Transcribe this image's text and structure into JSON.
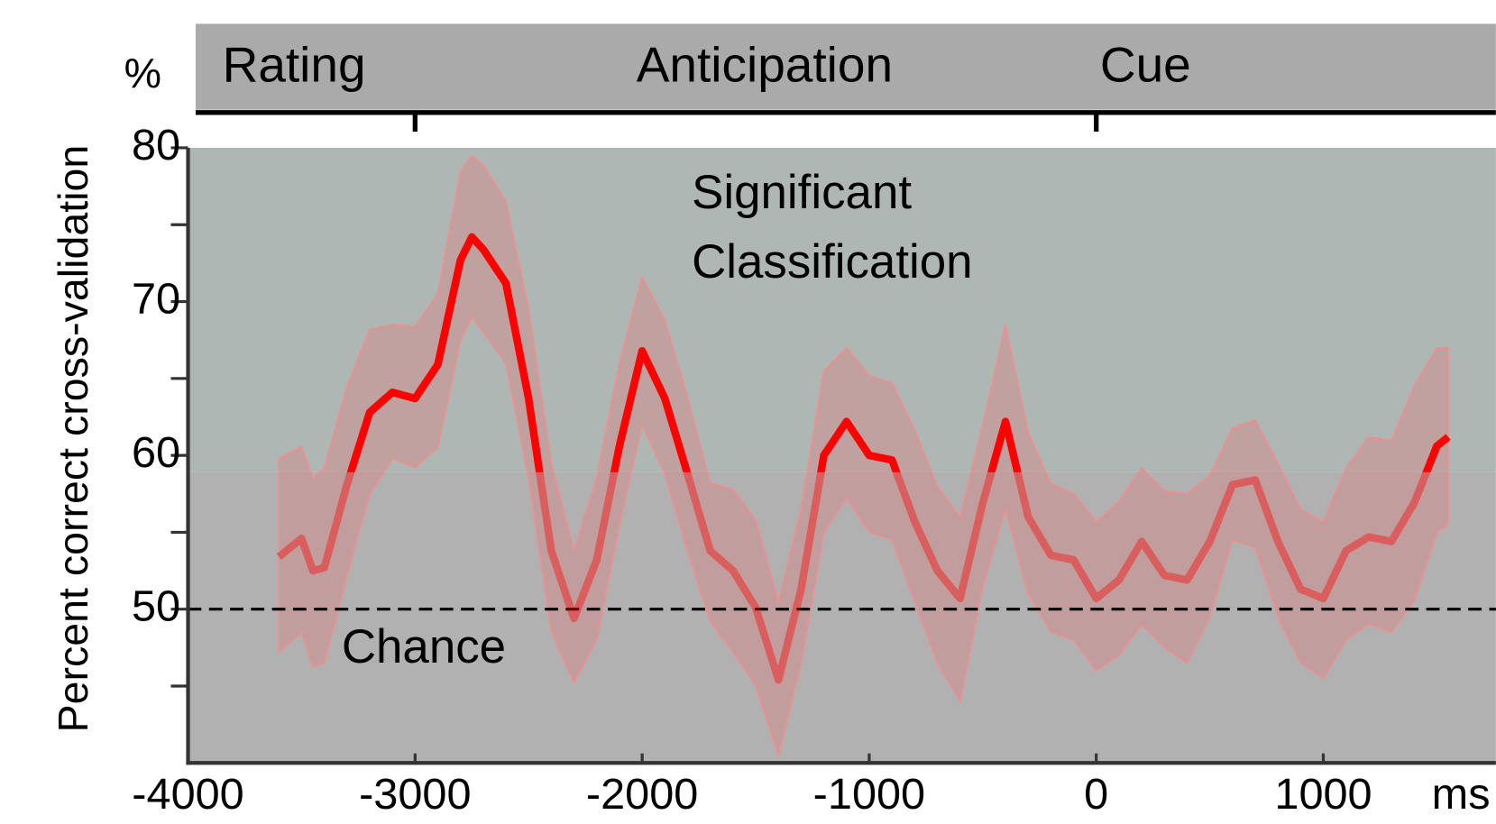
{
  "chart_data": {
    "type": "line",
    "y_axis_label": "Percent correct cross-validation",
    "y_unit": "%",
    "x_unit": "ms",
    "phase_labels": [
      "Rating",
      "Anticipation",
      "Cue"
    ],
    "phase_ticks": [
      -3000,
      0
    ],
    "annotations": {
      "significant": [
        "Significant",
        "Classification"
      ],
      "chance": "Chance"
    },
    "chance_level": 50,
    "significance_threshold": 58.9,
    "xlim": [
      -4000,
      1760
    ],
    "xticks": [
      -4000,
      -3000,
      -2000,
      -1000,
      0,
      1000
    ],
    "ylim": [
      40,
      80
    ],
    "yticks": [
      50,
      60,
      70,
      80
    ],
    "yminorticks": [
      45,
      55,
      65,
      75
    ],
    "color": "#ff0000",
    "x": [
      -3600,
      -3500,
      -3450,
      -3400,
      -3300,
      -3200,
      -3100,
      -3000,
      -2900,
      -2800,
      -2750,
      -2700,
      -2600,
      -2500,
      -2400,
      -2300,
      -2200,
      -2100,
      -2000,
      -1900,
      -1800,
      -1700,
      -1600,
      -1500,
      -1400,
      -1300,
      -1200,
      -1100,
      -1000,
      -900,
      -800,
      -700,
      -600,
      -500,
      -400,
      -300,
      -200,
      -100,
      0,
      100,
      200,
      300,
      400,
      500,
      600,
      700,
      800,
      900,
      1000,
      1100,
      1200,
      1300,
      1400,
      1500,
      1550
    ],
    "values": [
      53.4,
      54.6,
      52.5,
      52.7,
      58.1,
      62.8,
      64.1,
      63.7,
      65.9,
      72.7,
      74.2,
      73.4,
      71.2,
      63.7,
      53.8,
      49.4,
      53.2,
      60.6,
      66.8,
      63.7,
      58.8,
      53.8,
      52.5,
      50.1,
      45.4,
      51.3,
      60.0,
      62.2,
      60.0,
      59.7,
      55.7,
      52.5,
      50.7,
      56.9,
      62.2,
      56.0,
      53.5,
      53.2,
      50.7,
      51.9,
      54.4,
      52.2,
      51.9,
      54.4,
      58.1,
      58.4,
      54.4,
      51.3,
      50.7,
      53.8,
      54.7,
      54.4,
      56.9,
      60.6,
      61.2
    ],
    "ci_upper": [
      59.8,
      60.6,
      58.5,
      59.2,
      64.5,
      68.2,
      68.5,
      68.4,
      70.5,
      78.5,
      79.5,
      78.9,
      76.5,
      69.5,
      59.5,
      53.8,
      58.5,
      66.0,
      71.6,
      68.8,
      63.8,
      58.2,
      57.8,
      55.8,
      50.5,
      56.5,
      65.5,
      67.0,
      65.2,
      64.7,
      61.7,
      58.0,
      56.0,
      62.0,
      68.5,
      61.5,
      58.2,
      57.5,
      55.7,
      57.0,
      59.2,
      57.7,
      57.5,
      58.7,
      61.8,
      62.3,
      59.5,
      56.5,
      55.7,
      59.2,
      61.2,
      61.0,
      64.5,
      67.0,
      67.0
    ],
    "ci_lower": [
      47.2,
      48.5,
      46.2,
      46.5,
      52.2,
      57.5,
      59.8,
      59.2,
      60.5,
      67.5,
      69.0,
      68.0,
      66.0,
      58.5,
      48.5,
      45.2,
      48.0,
      55.5,
      62.0,
      58.8,
      53.8,
      49.2,
      47.2,
      45.0,
      40.5,
      46.5,
      55.0,
      57.2,
      55.0,
      54.5,
      50.5,
      46.5,
      44.0,
      51.5,
      56.5,
      51.0,
      48.5,
      48.0,
      46.0,
      47.0,
      49.0,
      47.5,
      46.5,
      49.5,
      54.5,
      54.0,
      49.5,
      46.5,
      45.5,
      48.0,
      49.0,
      48.5,
      50.5,
      55.0,
      55.5
    ]
  }
}
